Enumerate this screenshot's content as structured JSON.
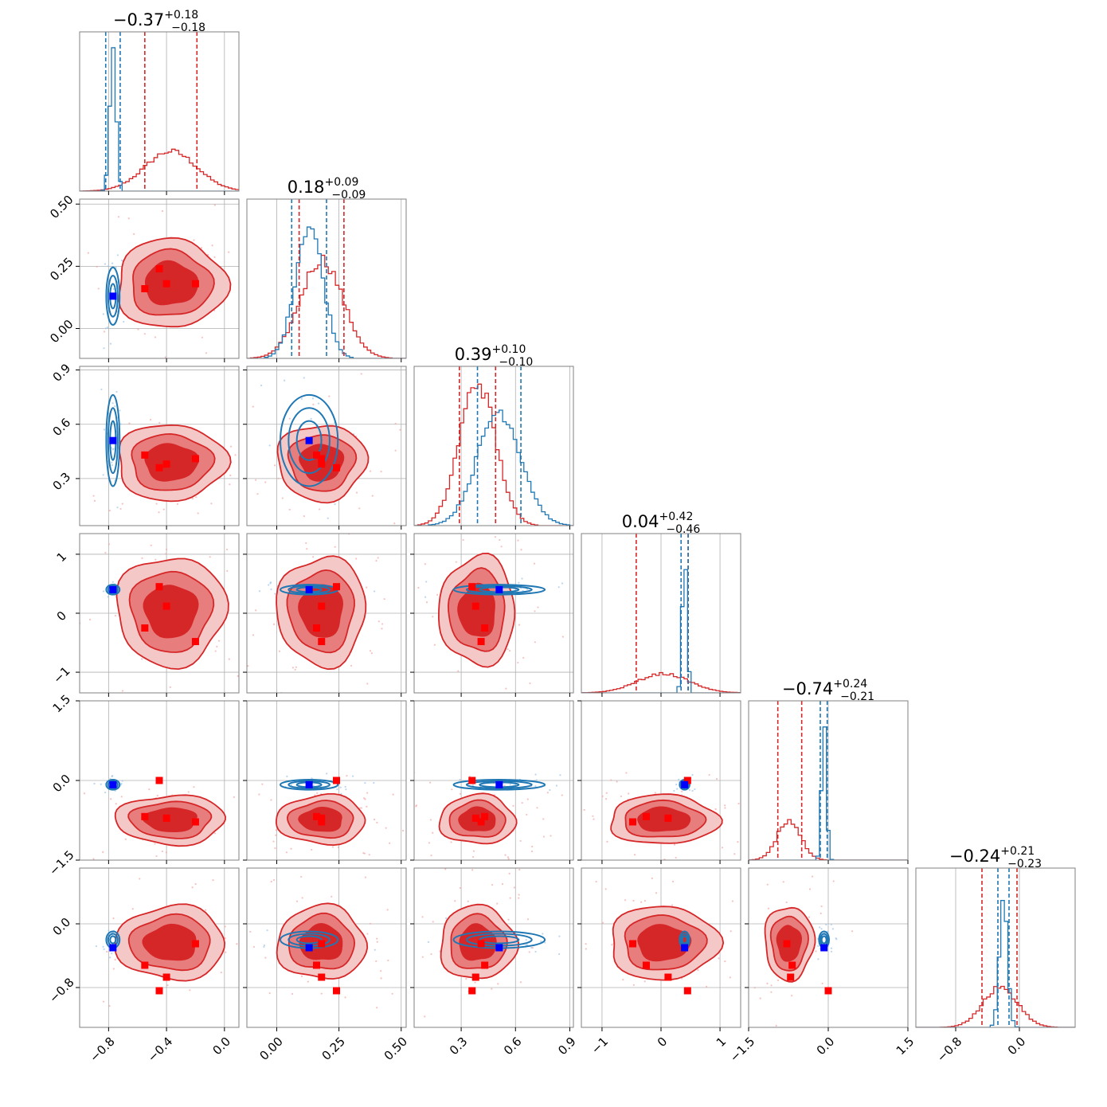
{
  "chart_data": {
    "type": "corner",
    "grid": true,
    "colors": {
      "red": "#d62728",
      "blue": "#1f77b4",
      "red_marker": "#ff0000",
      "blue_marker": "#0000ff"
    },
    "params": [
      {
        "title_main": "−0.37",
        "title_up": "+0.18",
        "title_lo": "−0.18",
        "range": [
          -1.0,
          0.1
        ],
        "ticks": [
          -0.8,
          -0.4,
          0.0
        ],
        "tick_labels": [
          "−0.8",
          "−0.4",
          "0.0"
        ],
        "red_quantiles": [
          -0.55,
          -0.19
        ],
        "blue_quantiles": [
          -0.82,
          -0.72
        ],
        "red": {
          "mean": -0.37,
          "sd": 0.18
        },
        "blue": {
          "mean": -0.77,
          "sd": 0.022
        },
        "red_peak": 0.25,
        "blue_peak": 0.92
      },
      {
        "title_main": "0.18",
        "title_up": "+0.09",
        "title_lo": "−0.09",
        "range": [
          -0.12,
          0.52
        ],
        "ticks": [
          0.0,
          0.25,
          0.5
        ],
        "tick_labels": [
          "0.00",
          "0.25",
          "0.50"
        ],
        "red_quantiles": [
          0.09,
          0.27
        ],
        "blue_quantiles": [
          0.06,
          0.2
        ],
        "red": {
          "mean": 0.18,
          "sd": 0.085
        },
        "blue": {
          "mean": 0.13,
          "sd": 0.055
        },
        "red_peak": 0.62,
        "blue_peak": 0.84
      },
      {
        "title_main": "0.39",
        "title_up": "+0.10",
        "title_lo": "−0.10",
        "range": [
          0.04,
          0.92
        ],
        "ticks": [
          0.3,
          0.6,
          0.9
        ],
        "tick_labels": [
          "0.3",
          "0.6",
          "0.9"
        ],
        "red_quantiles": [
          0.29,
          0.49
        ],
        "blue_quantiles": [
          0.39,
          0.63
        ],
        "red": {
          "mean": 0.39,
          "sd": 0.1
        },
        "blue": {
          "mean": 0.51,
          "sd": 0.12
        },
        "red_peak": 0.9,
        "blue_peak": 0.72
      },
      {
        "title_main": "0.04",
        "title_up": "+0.42",
        "title_lo": "−0.46",
        "range": [
          -1.35,
          1.35
        ],
        "ticks": [
          -1,
          0,
          1
        ],
        "tick_labels": [
          "−1",
          "0",
          "1"
        ],
        "red_quantiles": [
          -0.42,
          0.46
        ],
        "blue_quantiles": [
          0.34,
          0.46
        ],
        "red": {
          "mean": 0.04,
          "sd": 0.44
        },
        "blue": {
          "mean": 0.4,
          "sd": 0.04
        },
        "red_peak": 0.12,
        "blue_peak": 0.92
      },
      {
        "title_main": "−0.74",
        "title_up": "+0.24",
        "title_lo": "−0.21",
        "range": [
          -1.5,
          1.5
        ],
        "ticks": [
          -1.5,
          0.0,
          1.5
        ],
        "tick_labels": [
          "−1.5",
          "0.0",
          "1.5"
        ],
        "red_quantiles": [
          -0.95,
          -0.5
        ],
        "blue_quantiles": [
          -0.15,
          -0.02
        ],
        "red": {
          "mean": -0.74,
          "sd": 0.22
        },
        "blue": {
          "mean": -0.08,
          "sd": 0.045
        },
        "red_peak": 0.25,
        "blue_peak": 0.92
      },
      {
        "title_main": "−0.24",
        "title_up": "+0.21",
        "title_lo": "−0.23",
        "range": [
          -1.3,
          0.7
        ],
        "ticks": [
          -0.8,
          0.0
        ],
        "tick_labels": [
          "−0.8",
          "0.0"
        ],
        "red_quantiles": [
          -0.47,
          -0.03
        ],
        "blue_quantiles": [
          -0.27,
          -0.13
        ],
        "red": {
          "mean": -0.24,
          "sd": 0.22
        },
        "blue": {
          "mean": -0.2,
          "sd": 0.05
        },
        "red_peak": 0.25,
        "blue_peak": 0.82
      }
    ],
    "y_tick_labels": {
      "1": [
        "0.00",
        "0.25",
        "0.50"
      ],
      "2": [
        "0.3",
        "0.6",
        "0.9"
      ],
      "3": [
        "−1",
        "0",
        "1"
      ],
      "4": [
        "−1.5",
        "0.0",
        "1.5"
      ],
      "5": [
        "−0.8",
        "0.0"
      ]
    },
    "red_markers": [
      [
        -0.55,
        0.16,
        0.43,
        -0.25,
        -0.68,
        -0.52
      ],
      [
        -0.45,
        0.24,
        0.36,
        0.45,
        0.0,
        -0.84
      ],
      [
        -0.4,
        0.18,
        0.38,
        0.12,
        -0.71,
        -0.67
      ],
      [
        -0.2,
        0.18,
        0.41,
        -0.48,
        -0.78,
        -0.25
      ]
    ],
    "blue_marker": [
      -0.77,
      0.13,
      0.51,
      0.4,
      -0.08,
      -0.3
    ]
  }
}
